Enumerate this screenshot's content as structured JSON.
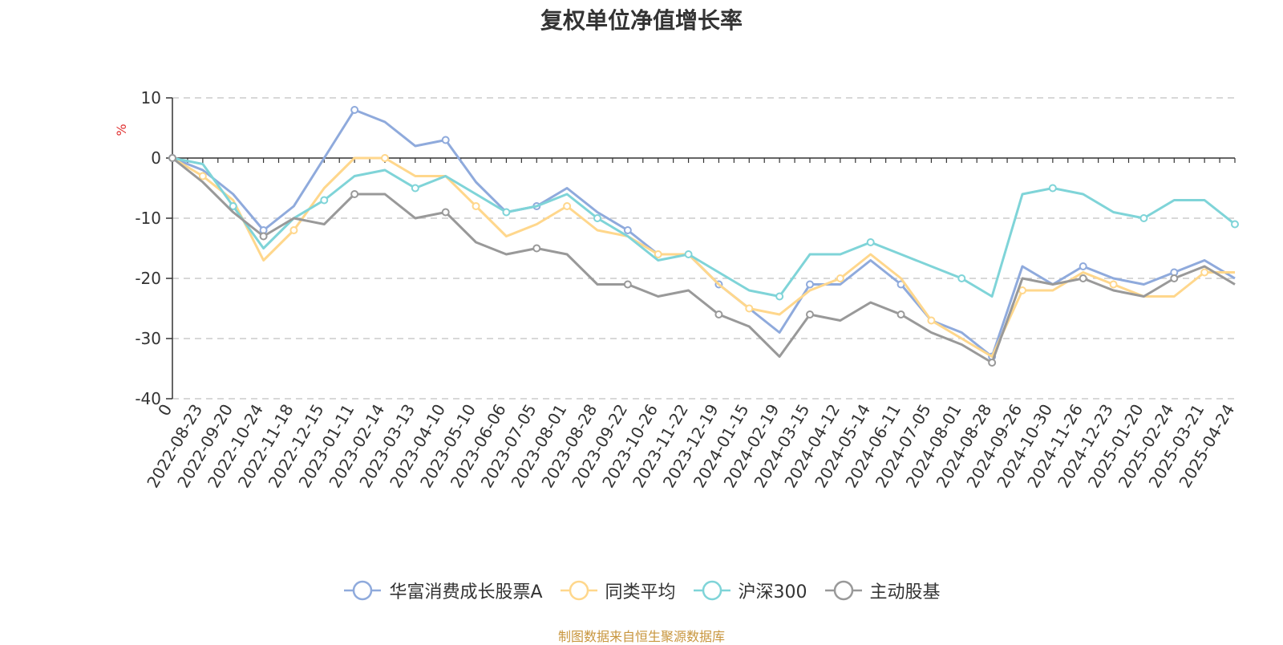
{
  "title": "复权单位净值增长率",
  "source_note": "制图数据来自恒生聚源数据库",
  "colors": {
    "华富消费成长股票A": "#8faadc",
    "同类平均": "#ffd78c",
    "沪深300": "#7fd4d8",
    "主动股基": "#999999"
  },
  "chart_data": {
    "type": "line",
    "title": "复权单位净值增长率",
    "ylabel": "%",
    "ylim": [
      -40,
      10
    ],
    "yticks": [
      "10",
      "0",
      "-10",
      "-20",
      "-30",
      "-40"
    ],
    "grid": true,
    "legend_position": "bottom",
    "x_tick_labels": [
      "0",
      "2022-08-23",
      "2022-09-20",
      "2022-10-24",
      "2022-11-18",
      "2022-12-15",
      "2023-01-11",
      "2023-02-14",
      "2023-03-13",
      "2023-04-10",
      "2023-05-10",
      "2023-06-06",
      "2023-07-05",
      "2023-08-01",
      "2023-08-28",
      "2023-09-22",
      "2023-10-26",
      "2023-11-22",
      "2023-12-19",
      "2024-01-15",
      "2024-02-19",
      "2024-03-15",
      "2024-04-12",
      "2024-05-14",
      "2024-06-11",
      "2024-07-05",
      "2024-08-01",
      "2024-08-28",
      "2024-09-26",
      "2024-10-30",
      "2024-11-26",
      "2024-12-23",
      "2025-01-20",
      "2025-02-24",
      "2025-03-21",
      "2025-04-24"
    ],
    "series": [
      {
        "name": "华富消费成长股票A",
        "values": [
          0,
          -2,
          -6,
          -12,
          -8,
          0,
          8,
          6,
          2,
          3,
          -4,
          -9,
          -8,
          -5,
          -9,
          -12,
          -16,
          -16,
          -21,
          -25,
          -29,
          -21,
          -21,
          -17,
          -21,
          -27,
          -29,
          -33,
          -18,
          -21,
          -18,
          -20,
          -21,
          -19,
          -17,
          -20
        ]
      },
      {
        "name": "同类平均",
        "values": [
          0,
          -3,
          -7,
          -17,
          -12,
          -5,
          0,
          0,
          -3,
          -3,
          -8,
          -13,
          -11,
          -8,
          -12,
          -13,
          -16,
          -16,
          -21,
          -25,
          -26,
          -22,
          -20,
          -16,
          -20,
          -27,
          -30,
          -33,
          -22,
          -22,
          -19,
          -21,
          -23,
          -23,
          -19,
          -19
        ]
      },
      {
        "name": "沪深300",
        "values": [
          0,
          -1,
          -8,
          -15,
          -10,
          -7,
          -3,
          -2,
          -5,
          -3,
          -6,
          -9,
          -8,
          -6,
          -10,
          -13,
          -17,
          -16,
          -19,
          -22,
          -23,
          -16,
          -16,
          -14,
          -16,
          -18,
          -20,
          -23,
          -6,
          -5,
          -6,
          -9,
          -10,
          -7,
          -7,
          -11
        ]
      },
      {
        "name": "主动股基",
        "values": [
          0,
          -4,
          -9,
          -13,
          -10,
          -11,
          -6,
          -6,
          -10,
          -9,
          -14,
          -16,
          -15,
          -16,
          -21,
          -21,
          -23,
          -22,
          -26,
          -28,
          -33,
          -26,
          -27,
          -24,
          -26,
          -29,
          -31,
          -34,
          -20,
          -21,
          -20,
          -22,
          -23,
          -20,
          -18,
          -21
        ]
      }
    ]
  }
}
